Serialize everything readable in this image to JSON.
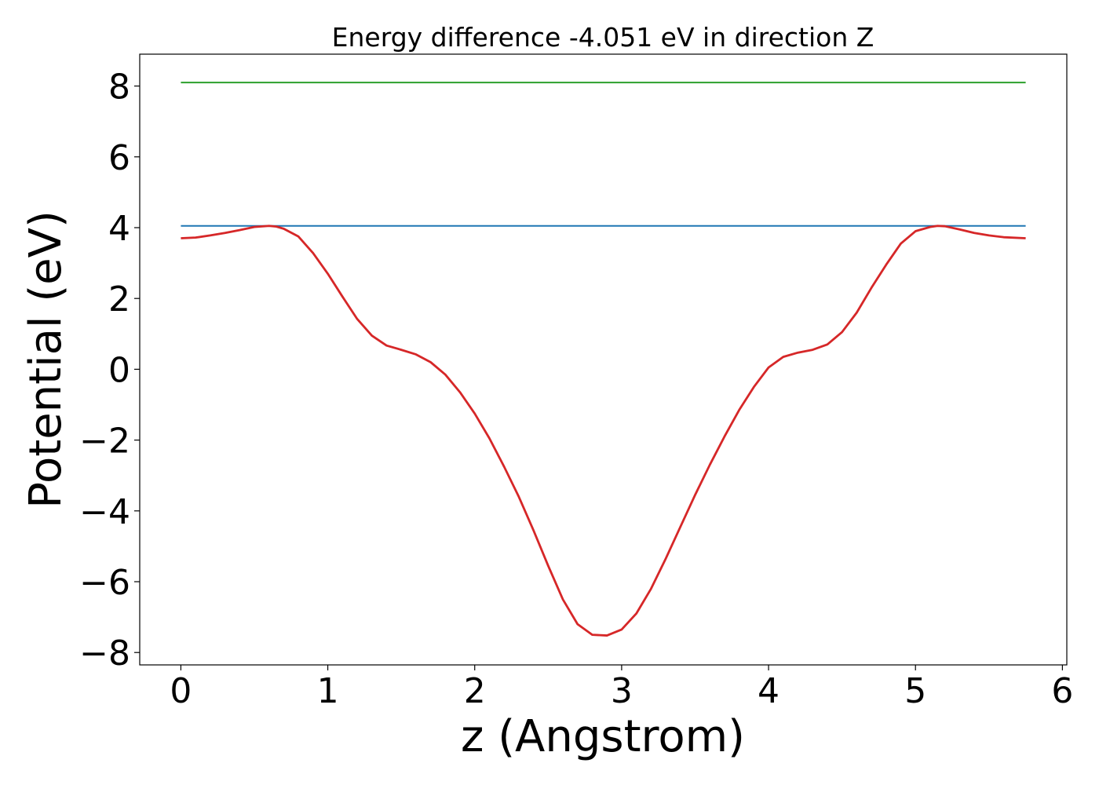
{
  "chart_data": {
    "type": "line",
    "title": "Energy difference -4.051 eV in direction Z",
    "xlabel": "z (Angstrom)",
    "ylabel": "Potential (eV)",
    "xlim": [
      -0.28,
      6.03
    ],
    "ylim": [
      -8.35,
      8.9
    ],
    "xticks": [
      0,
      1,
      2,
      3,
      4,
      5,
      6
    ],
    "xtick_labels": [
      "0",
      "1",
      "2",
      "3",
      "4",
      "5",
      "6"
    ],
    "yticks": [
      -8,
      -6,
      -4,
      -2,
      0,
      2,
      4,
      6,
      8
    ],
    "ytick_labels": [
      "−8",
      "−6",
      "−4",
      "−2",
      "0",
      "2",
      "4",
      "6",
      "8"
    ],
    "grid": false,
    "series": [
      {
        "color": "#2ca02c",
        "x": [
          0,
          5.75
        ],
        "y": [
          8.1,
          8.1
        ]
      },
      {
        "color": "#1f77b4",
        "x": [
          0,
          5.75
        ],
        "y": [
          4.05,
          4.05
        ]
      },
      {
        "color": "#d62728",
        "x": [
          0,
          0.1,
          0.2,
          0.3,
          0.4,
          0.5,
          0.6,
          0.65,
          0.7,
          0.8,
          0.9,
          1.0,
          1.1,
          1.2,
          1.3,
          1.4,
          1.5,
          1.6,
          1.7,
          1.8,
          1.9,
          2.0,
          2.1,
          2.2,
          2.3,
          2.4,
          2.5,
          2.6,
          2.7,
          2.8,
          2.9,
          3.0,
          3.1,
          3.2,
          3.3,
          3.4,
          3.5,
          3.6,
          3.7,
          3.8,
          3.9,
          4.0,
          4.1,
          4.2,
          4.3,
          4.4,
          4.5,
          4.6,
          4.7,
          4.8,
          4.9,
          5.0,
          5.1,
          5.15,
          5.2,
          5.3,
          5.4,
          5.5,
          5.6,
          5.75
        ],
        "y": [
          3.7,
          3.72,
          3.78,
          3.85,
          3.93,
          4.02,
          4.05,
          4.03,
          3.97,
          3.75,
          3.28,
          2.7,
          2.05,
          1.42,
          0.95,
          0.67,
          0.55,
          0.42,
          0.2,
          -0.15,
          -0.65,
          -1.25,
          -1.95,
          -2.75,
          -3.6,
          -4.55,
          -5.55,
          -6.5,
          -7.2,
          -7.5,
          -7.52,
          -7.35,
          -6.9,
          -6.2,
          -5.35,
          -4.45,
          -3.55,
          -2.7,
          -1.9,
          -1.15,
          -0.5,
          0.05,
          0.35,
          0.47,
          0.55,
          0.7,
          1.05,
          1.6,
          2.3,
          2.95,
          3.55,
          3.9,
          4.02,
          4.05,
          4.04,
          3.95,
          3.85,
          3.78,
          3.73,
          3.7
        ]
      }
    ]
  }
}
